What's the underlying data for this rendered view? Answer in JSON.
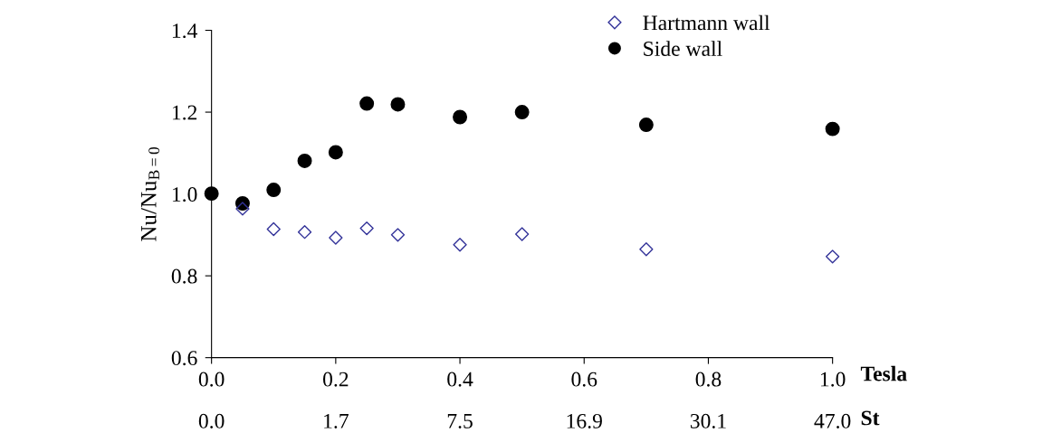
{
  "chart_data": {
    "type": "scatter",
    "xlabel": "Tesla",
    "ylabel": "Nu/Nu$_{B=0}$",
    "annotations": [
      "0.0",
      "1.7",
      "7.5",
      "16.9",
      "30.1",
      "47.0",
      "St"
    ],
    "xlim": [
      0,
      1.0
    ],
    "xticks": [
      {
        "value": 0,
        "label": "0.0"
      },
      0.2,
      0.4,
      0.6,
      0.8,
      {
        "value": 1.0,
        "label": "1.0"
      }
    ],
    "ylim": [
      0.6,
      1.4
    ],
    "yticks": [
      0.6,
      0.8,
      {
        "value": 1.0,
        "label": "1.0"
      },
      1.2,
      1.4
    ],
    "grid": false,
    "legend": "top right",
    "series": [
      {
        "name": "Hartmann wall",
        "color": "#333399",
        "marker": "diamond",
        "x": [
          0.05,
          0.1,
          0.15,
          0.2,
          0.25,
          0.3,
          0.4,
          0.5,
          0.7,
          1.0
        ],
        "values": [
          0.964,
          0.914,
          0.907,
          0.893,
          0.916,
          0.9,
          0.876,
          0.902,
          0.865,
          0.847
        ]
      },
      {
        "name": "Side wall",
        "color": "#000000",
        "marker": "circle",
        "x": [
          0,
          0.05,
          0.1,
          0.15,
          0.2,
          0.25,
          0.3,
          0.4,
          0.5,
          0.7,
          1.0
        ],
        "values": [
          1.001,
          0.977,
          1.01,
          1.081,
          1.102,
          1.221,
          1.219,
          1.188,
          1.2,
          1.169,
          1.159
        ]
      }
    ]
  }
}
